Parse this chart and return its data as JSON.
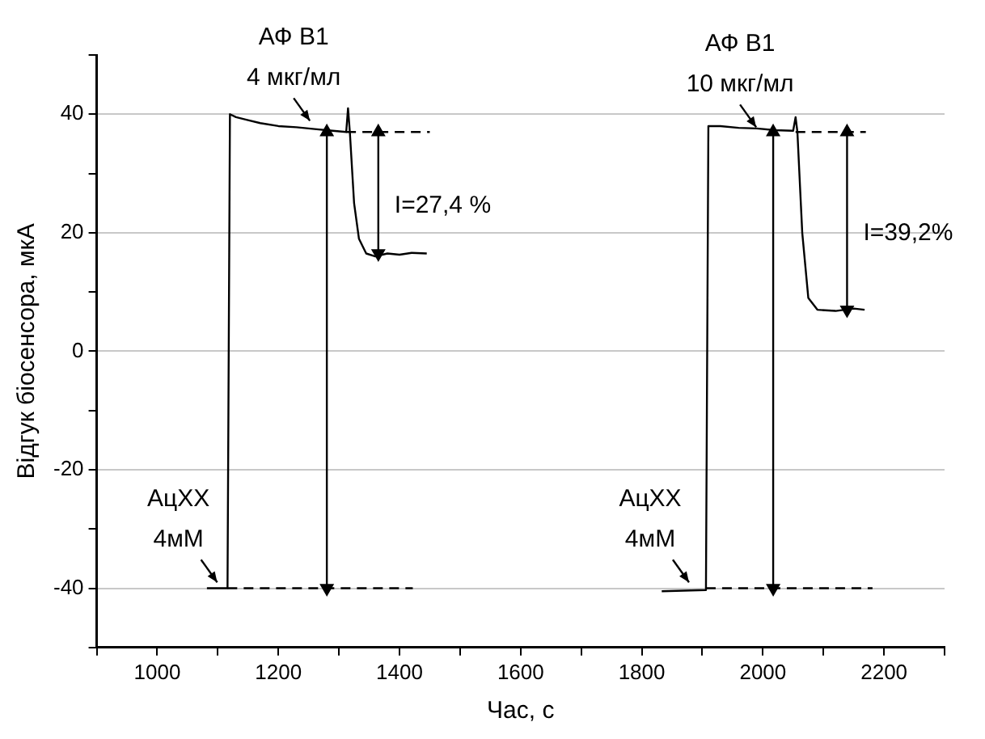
{
  "chart_data": {
    "type": "line",
    "xlabel": "Час, с",
    "ylabel": "Відгук біосенсора, мкА",
    "xlim": [
      900,
      2300
    ],
    "xticks": [
      {
        "value": 900,
        "label": null
      },
      1000,
      {
        "value": 1100,
        "label": null
      },
      1200,
      {
        "value": 1300,
        "label": null
      },
      1400,
      {
        "value": 1500,
        "label": null
      },
      1600,
      {
        "value": 1700,
        "label": null
      },
      1800,
      {
        "value": 1900,
        "label": null
      },
      2000,
      {
        "value": 2100,
        "label": null
      },
      2200,
      {
        "value": 2300,
        "label": null
      }
    ],
    "ylim": [
      -50,
      50
    ],
    "yticks": [
      {
        "value": -50,
        "label": null
      },
      -40,
      {
        "value": -30,
        "label": null
      },
      -20,
      {
        "value": -10,
        "label": null
      },
      0,
      {
        "value": 10,
        "label": null
      },
      20,
      {
        "value": 30,
        "label": null
      },
      40,
      {
        "value": 50,
        "label": null
      }
    ],
    "grid": "y",
    "legend": false,
    "marker": "none",
    "line_style": "solid",
    "series": [
      {
        "color": "#000000",
        "x": [
          1082,
          1116,
          1120,
          1130,
          1150,
          1170,
          1200,
          1230,
          1260,
          1290,
          1312,
          1315,
          1318,
          1325,
          1333,
          1345,
          1360,
          1380,
          1400,
          1420,
          1445
        ],
        "values": [
          -40,
          -40,
          40,
          39.5,
          39,
          38.5,
          38,
          37.8,
          37.5,
          37.2,
          37,
          41,
          37,
          25,
          19,
          16.5,
          16,
          16.5,
          16.3,
          16.6,
          16.5
        ]
      },
      {
        "color": "#000000",
        "x": [
          1833,
          1906,
          1910,
          1930,
          1960,
          1990,
          2020,
          2050,
          2054,
          2057,
          2065,
          2075,
          2090,
          2120,
          2150,
          2168
        ],
        "values": [
          -40.5,
          -40.3,
          38,
          38,
          37.7,
          37.6,
          37.3,
          37.2,
          39.5,
          37,
          20,
          9,
          7,
          6.8,
          7.2,
          7
        ]
      },
      {
        "color": "#000000",
        "line_style": "dashed",
        "x": [
          1312,
          1450
        ],
        "values": [
          37,
          37
        ]
      },
      {
        "color": "#000000",
        "line_style": "dashed",
        "x": [
          1116,
          1422
        ],
        "values": [
          -40,
          -40
        ]
      },
      {
        "color": "#000000",
        "line_style": "dashed",
        "x": [
          2054,
          2170
        ],
        "values": [
          37,
          37
        ]
      },
      {
        "color": "#000000",
        "line_style": "dashed",
        "x": [
          1906,
          2181
        ],
        "values": [
          -40,
          -40
        ]
      },
      {
        "color": "#000000",
        "marker": "triangle",
        "x": [
          1280,
          1280
        ],
        "values": [
          -40,
          37
        ]
      },
      {
        "color": "#000000",
        "marker": "triangle",
        "x": [
          1365,
          1365
        ],
        "values": [
          37,
          16.5
        ]
      },
      {
        "color": "#000000",
        "marker": "triangle",
        "x": [
          2017,
          2017
        ],
        "values": [
          -40,
          37
        ]
      },
      {
        "color": "#000000",
        "marker": "triangle",
        "x": [
          2139,
          2139
        ],
        "values": [
          37,
          7
        ]
      }
    ],
    "annotations": [
      {
        "text": "АФ В1\n4 мкг/мл",
        "x": 1252,
        "y": 38.9
      },
      {
        "text": "АФ В1\n10 мкг/мл",
        "x": 1989,
        "y": 37.8
      },
      {
        "text": "АцХХ\n4мМ",
        "x": 1099,
        "y": -39
      },
      {
        "text": "АцХХ\n4мМ",
        "x": 1878,
        "y": -39
      },
      "I=27,4 %",
      "I=39,2%"
    ]
  }
}
